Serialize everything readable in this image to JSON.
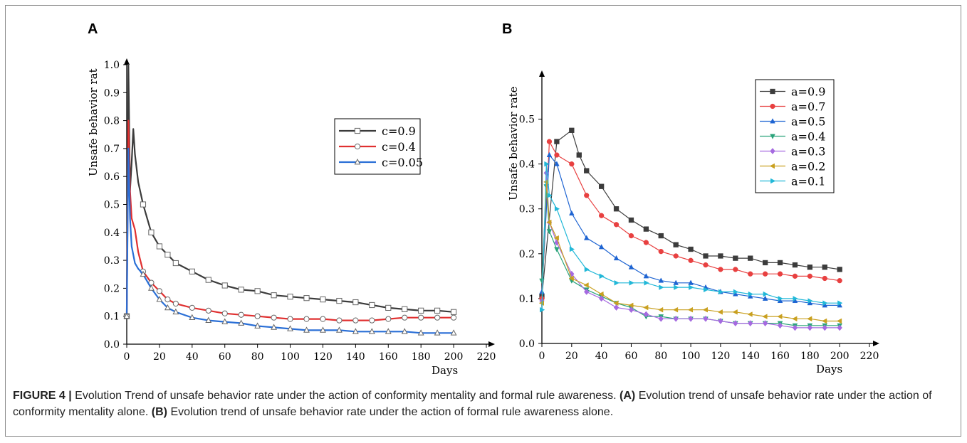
{
  "chart_data": [
    {
      "type": "line",
      "panel": "A",
      "xlabel": "Days",
      "ylabel": "Unsafe behavior rat",
      "xlim": [
        0,
        220
      ],
      "ylim": [
        0,
        1.0
      ],
      "x_ticks": [
        "0",
        "20",
        "40",
        "60",
        "80",
        "100",
        "120",
        "140",
        "160",
        "180",
        "200",
        "220"
      ],
      "y_ticks": [
        "0.0",
        "0.1",
        "0.2",
        "0.3",
        "0.4",
        "0.5",
        "0.6",
        "0.7",
        "0.8",
        "0.9",
        "1.0"
      ],
      "legend_position": "upper-right",
      "series": [
        {
          "name": "c=0.9",
          "color": "#3b3b3b",
          "marker": "square",
          "x": [
            0,
            1,
            2,
            3,
            4,
            5,
            7,
            10,
            15,
            20,
            25,
            30,
            40,
            50,
            60,
            70,
            80,
            90,
            100,
            110,
            120,
            130,
            140,
            150,
            160,
            170,
            180,
            190,
            200
          ],
          "y": [
            0.1,
            1.0,
            0.55,
            0.65,
            0.77,
            0.68,
            0.58,
            0.5,
            0.4,
            0.35,
            0.32,
            0.29,
            0.26,
            0.23,
            0.21,
            0.195,
            0.19,
            0.175,
            0.17,
            0.165,
            0.16,
            0.155,
            0.15,
            0.14,
            0.13,
            0.125,
            0.12,
            0.12,
            0.115
          ]
        },
        {
          "name": "c=0.4",
          "color": "#e03030",
          "marker": "circle",
          "x": [
            0,
            1,
            2,
            3,
            5,
            7,
            10,
            15,
            20,
            25,
            30,
            40,
            50,
            60,
            70,
            80,
            90,
            100,
            110,
            120,
            130,
            140,
            150,
            160,
            170,
            180,
            190,
            200
          ],
          "y": [
            0.1,
            0.8,
            0.55,
            0.45,
            0.41,
            0.33,
            0.26,
            0.22,
            0.19,
            0.16,
            0.145,
            0.13,
            0.12,
            0.11,
            0.105,
            0.1,
            0.095,
            0.09,
            0.09,
            0.09,
            0.085,
            0.085,
            0.085,
            0.09,
            0.095,
            0.095,
            0.095,
            0.095
          ]
        },
        {
          "name": "c=0.05",
          "color": "#2a6fd6",
          "marker": "triangle",
          "x": [
            0,
            1,
            2,
            3,
            5,
            7,
            10,
            15,
            20,
            25,
            30,
            40,
            50,
            60,
            70,
            80,
            90,
            100,
            110,
            120,
            130,
            140,
            150,
            160,
            170,
            180,
            190,
            200
          ],
          "y": [
            0.1,
            0.7,
            0.45,
            0.35,
            0.29,
            0.27,
            0.25,
            0.2,
            0.16,
            0.13,
            0.115,
            0.095,
            0.085,
            0.08,
            0.075,
            0.065,
            0.06,
            0.055,
            0.05,
            0.05,
            0.05,
            0.045,
            0.045,
            0.045,
            0.045,
            0.04,
            0.04,
            0.04
          ]
        }
      ]
    },
    {
      "type": "line",
      "panel": "B",
      "xlabel": "Days",
      "ylabel": "Unsafe behavior rate",
      "xlim": [
        0,
        220
      ],
      "ylim": [
        0,
        0.55
      ],
      "x_ticks": [
        "0",
        "20",
        "40",
        "60",
        "80",
        "100",
        "120",
        "140",
        "160",
        "180",
        "200",
        "220"
      ],
      "y_ticks": [
        "0.0",
        "0.1",
        "0.2",
        "0.3",
        "0.4",
        "0.5"
      ],
      "legend_position": "upper-right",
      "series": [
        {
          "name": "a=0.9",
          "color": "#3c3c3c",
          "marker": "square",
          "x": [
            0,
            10,
            20,
            25,
            30,
            40,
            50,
            60,
            70,
            80,
            90,
            100,
            110,
            120,
            130,
            140,
            150,
            160,
            170,
            180,
            190,
            200
          ],
          "y": [
            0.105,
            0.45,
            0.475,
            0.42,
            0.385,
            0.35,
            0.3,
            0.275,
            0.255,
            0.24,
            0.22,
            0.21,
            0.195,
            0.195,
            0.19,
            0.19,
            0.18,
            0.18,
            0.175,
            0.17,
            0.17,
            0.165
          ]
        },
        {
          "name": "a=0.7",
          "color": "#e84040",
          "marker": "circle",
          "x": [
            0,
            5,
            10,
            20,
            30,
            40,
            50,
            60,
            70,
            80,
            90,
            100,
            110,
            120,
            130,
            140,
            150,
            160,
            170,
            180,
            190,
            200
          ],
          "y": [
            0.1,
            0.45,
            0.42,
            0.4,
            0.33,
            0.285,
            0.265,
            0.24,
            0.225,
            0.205,
            0.195,
            0.185,
            0.175,
            0.165,
            0.165,
            0.155,
            0.155,
            0.155,
            0.15,
            0.15,
            0.145,
            0.14
          ]
        },
        {
          "name": "a=0.5",
          "color": "#1e64d2",
          "marker": "triangle-up",
          "x": [
            0,
            5,
            10,
            20,
            30,
            40,
            50,
            60,
            70,
            80,
            90,
            100,
            110,
            120,
            130,
            140,
            150,
            160,
            170,
            180,
            190,
            200
          ],
          "y": [
            0.115,
            0.42,
            0.4,
            0.29,
            0.235,
            0.215,
            0.19,
            0.17,
            0.15,
            0.14,
            0.135,
            0.135,
            0.125,
            0.115,
            0.11,
            0.105,
            0.1,
            0.095,
            0.095,
            0.09,
            0.085,
            0.085
          ]
        },
        {
          "name": "a=0.4",
          "color": "#2aa37a",
          "marker": "triangle-down",
          "x": [
            0,
            3,
            5,
            10,
            20,
            30,
            40,
            50,
            60,
            70,
            80,
            90,
            100,
            110,
            120,
            130,
            140,
            150,
            160,
            170,
            180,
            190,
            200
          ],
          "y": [
            0.14,
            0.35,
            0.25,
            0.21,
            0.14,
            0.12,
            0.105,
            0.09,
            0.08,
            0.06,
            0.06,
            0.055,
            0.055,
            0.055,
            0.05,
            0.045,
            0.045,
            0.045,
            0.045,
            0.04,
            0.04,
            0.04,
            0.04
          ]
        },
        {
          "name": "a=0.3",
          "color": "#a56ae0",
          "marker": "diamond",
          "x": [
            0,
            3,
            5,
            10,
            20,
            30,
            40,
            50,
            60,
            70,
            80,
            90,
            100,
            110,
            120,
            130,
            140,
            150,
            160,
            170,
            180,
            190,
            200
          ],
          "y": [
            0.095,
            0.38,
            0.27,
            0.225,
            0.155,
            0.115,
            0.1,
            0.08,
            0.075,
            0.065,
            0.055,
            0.055,
            0.055,
            0.055,
            0.05,
            0.045,
            0.045,
            0.045,
            0.04,
            0.035,
            0.035,
            0.035,
            0.035
          ]
        },
        {
          "name": "a=0.2",
          "color": "#c9a020",
          "marker": "triangle-left",
          "x": [
            0,
            3,
            5,
            10,
            20,
            30,
            40,
            50,
            60,
            70,
            80,
            90,
            100,
            110,
            120,
            130,
            140,
            150,
            160,
            170,
            180,
            190,
            200
          ],
          "y": [
            0.09,
            0.36,
            0.27,
            0.235,
            0.145,
            0.13,
            0.11,
            0.09,
            0.085,
            0.08,
            0.075,
            0.075,
            0.075,
            0.075,
            0.07,
            0.07,
            0.065,
            0.06,
            0.06,
            0.055,
            0.055,
            0.05,
            0.05
          ]
        },
        {
          "name": "a=0.1",
          "color": "#22b8d8",
          "marker": "triangle-right",
          "x": [
            0,
            3,
            5,
            10,
            20,
            30,
            40,
            50,
            60,
            70,
            80,
            90,
            100,
            110,
            120,
            130,
            140,
            150,
            160,
            170,
            180,
            190,
            200
          ],
          "y": [
            0.075,
            0.4,
            0.33,
            0.3,
            0.21,
            0.165,
            0.15,
            0.135,
            0.135,
            0.135,
            0.125,
            0.125,
            0.125,
            0.12,
            0.115,
            0.115,
            0.11,
            0.11,
            0.1,
            0.1,
            0.095,
            0.09,
            0.09
          ]
        }
      ]
    }
  ],
  "caption": {
    "figure_label": "FIGURE 4 |",
    "text": "Evolution Trend of unsafe behavior rate under the action of conformity mentality and formal rule awareness.",
    "a_label": "(A)",
    "a_text": "Evolution trend of unsafe behavior rate under the action of conformity mentality alone.",
    "b_label": "(B)",
    "b_text": "Evolution trend of unsafe behavior rate under the action of formal rule awareness alone."
  }
}
